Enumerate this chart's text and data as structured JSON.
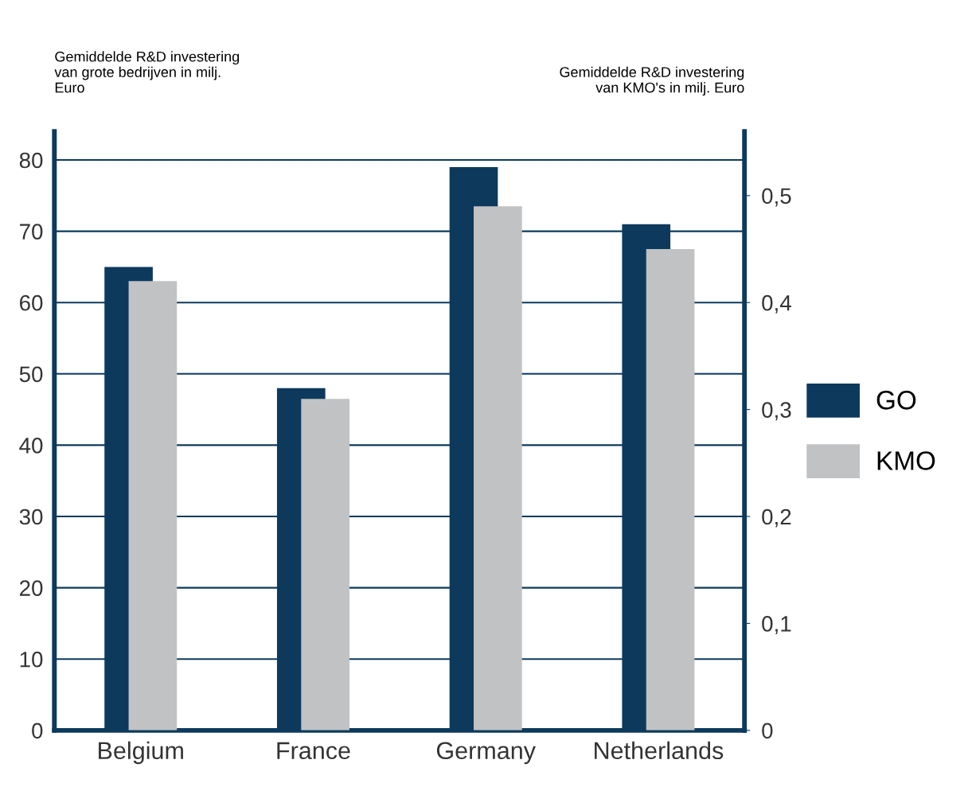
{
  "chart_data": {
    "type": "bar",
    "categories": [
      "Belgium",
      "France",
      "Germany",
      "Netherlands"
    ],
    "ylabel": "Gemiddelde R&D investering van grote bedrijven in milj. Euro",
    "y2label": "Gemiddelde R&D investering van KMO's in milj. Euro",
    "series": [
      {
        "name": "GO",
        "color": "#0d3a5c",
        "values": [
          65,
          48,
          79,
          71
        ]
      },
      {
        "name": "KMO",
        "color": "#c0c2c4",
        "axis": "y2",
        "values": [
          0.42,
          0.31,
          0.49,
          0.45
        ]
      }
    ],
    "ylim": [
      0,
      84
    ],
    "yticks": [
      0,
      10,
      20,
      30,
      40,
      50,
      60,
      70,
      80
    ],
    "y2lim": [
      0,
      0.56
    ],
    "y2ticks": [
      {
        "value": 0,
        "label": "0"
      },
      {
        "value": 0.1,
        "label": "0,1"
      },
      {
        "value": 0.2,
        "label": "0,2"
      },
      {
        "value": 0.3,
        "label": "0,3"
      },
      {
        "value": 0.4,
        "label": "0,4"
      },
      {
        "value": 0.5,
        "label": "0,5"
      }
    ],
    "grid": "y",
    "legend": "right"
  }
}
